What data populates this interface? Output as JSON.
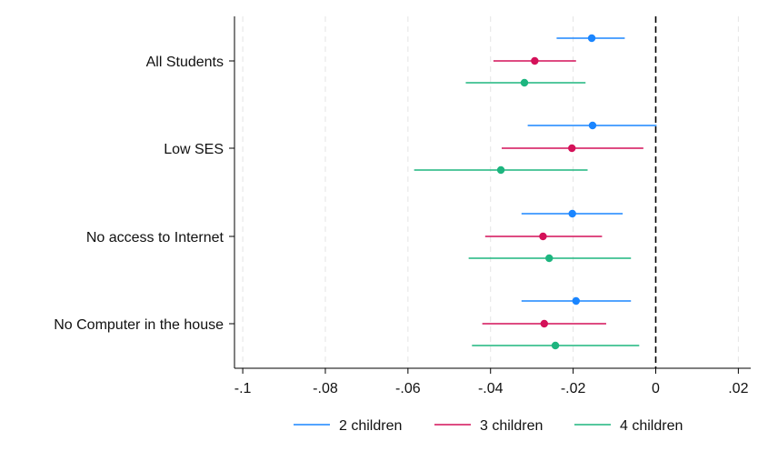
{
  "chart_data": {
    "type": "scatter",
    "subtype": "coefficient-plot",
    "title": "",
    "xlabel": "",
    "ylabel": "",
    "xlim": [
      -0.102,
      0.023
    ],
    "x_ticks": [
      {
        "value": -0.1,
        "label": "-.1"
      },
      {
        "value": -0.08,
        "label": "-.08"
      },
      {
        "value": -0.06,
        "label": "-.06"
      },
      {
        "value": -0.04,
        "label": "-.04"
      },
      {
        "value": -0.02,
        "label": "-.02"
      },
      {
        "value": 0,
        "label": "0"
      },
      {
        "value": 0.02,
        "label": ".02"
      }
    ],
    "grid": "vertical-dashed",
    "reference_line": {
      "x": 0,
      "style": "dashed",
      "color": "#000000"
    },
    "categories": [
      "All Students",
      "Low SES",
      "No access to Internet",
      "No Computer in the house"
    ],
    "series": [
      {
        "name": "2 children",
        "color": "#1a85ff",
        "points": [
          {
            "category": "All Students",
            "estimate": -0.0155,
            "ci_low": -0.024,
            "ci_high": -0.0075
          },
          {
            "category": "Low SES",
            "estimate": -0.0153,
            "ci_low": -0.031,
            "ci_high": 0.0002
          },
          {
            "category": "No access to Internet",
            "estimate": -0.0202,
            "ci_low": -0.0325,
            "ci_high": -0.008
          },
          {
            "category": "No Computer in the house",
            "estimate": -0.0193,
            "ci_low": -0.0325,
            "ci_high": -0.006
          }
        ]
      },
      {
        "name": "3 children",
        "color": "#d41159",
        "points": [
          {
            "category": "All Students",
            "estimate": -0.0293,
            "ci_low": -0.0393,
            "ci_high": -0.0193
          },
          {
            "category": "Low SES",
            "estimate": -0.0203,
            "ci_low": -0.0373,
            "ci_high": -0.003
          },
          {
            "category": "No access to Internet",
            "estimate": -0.0273,
            "ci_low": -0.0413,
            "ci_high": -0.013
          },
          {
            "category": "No Computer in the house",
            "estimate": -0.027,
            "ci_low": -0.042,
            "ci_high": -0.012
          }
        ]
      },
      {
        "name": "4 children",
        "color": "#1db57f",
        "points": [
          {
            "category": "All Students",
            "estimate": -0.0318,
            "ci_low": -0.046,
            "ci_high": -0.017
          },
          {
            "category": "Low SES",
            "estimate": -0.0375,
            "ci_low": -0.0585,
            "ci_high": -0.0165
          },
          {
            "category": "No access to Internet",
            "estimate": -0.0258,
            "ci_low": -0.0453,
            "ci_high": -0.006
          },
          {
            "category": "No Computer in the house",
            "estimate": -0.0243,
            "ci_low": -0.0445,
            "ci_high": -0.004
          }
        ]
      }
    ],
    "legend": {
      "position": "bottom",
      "items": [
        "2 children",
        "3 children",
        "4 children"
      ]
    }
  }
}
